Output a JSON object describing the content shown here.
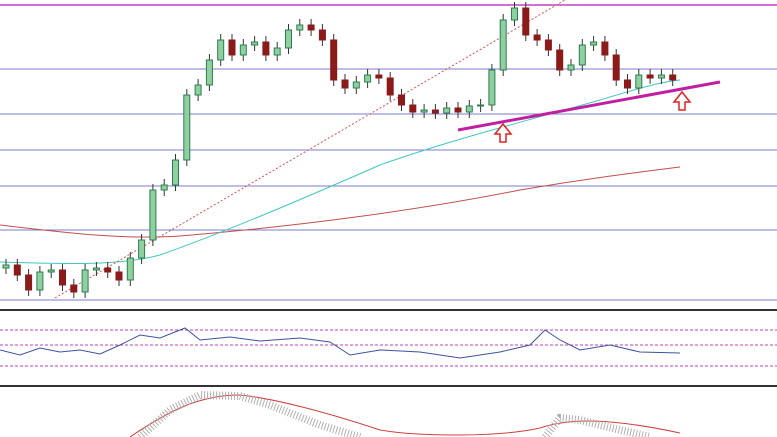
{
  "chart_data": {
    "type": "candlestick",
    "ylim": [
      0,
      308
    ],
    "up_color": "#2e7d4f",
    "down_color": "#8b1a1a",
    "open": [
      40,
      43,
      33,
      18,
      36,
      38,
      23,
      16,
      38,
      40,
      36,
      28,
      50,
      68,
      118,
      123,
      148,
      213,
      223,
      248,
      268,
      253,
      263,
      266,
      253,
      260,
      278,
      283,
      278,
      268,
      228,
      220,
      226,
      233,
      230,
      213,
      203,
      196,
      198,
      195,
      200,
      196,
      202,
      203,
      238,
      288,
      300,
      273,
      268,
      258,
      238,
      243,
      263,
      266,
      253,
      228,
      220,
      233,
      230,
      233
    ],
    "high": [
      49,
      49,
      39,
      42,
      44,
      44,
      29,
      44,
      46,
      46,
      42,
      56,
      74,
      124,
      129,
      154,
      219,
      229,
      254,
      274,
      274,
      269,
      272,
      272,
      266,
      284,
      289,
      289,
      284,
      274,
      234,
      232,
      239,
      239,
      236,
      219,
      209,
      204,
      204,
      206,
      206,
      208,
      209,
      244,
      294,
      306,
      306,
      279,
      274,
      264,
      249,
      269,
      272,
      272,
      259,
      234,
      239,
      239,
      239,
      239
    ],
    "low": [
      34,
      27,
      12,
      12,
      30,
      17,
      10,
      10,
      32,
      30,
      22,
      22,
      44,
      62,
      112,
      117,
      142,
      207,
      217,
      242,
      247,
      247,
      257,
      247,
      247,
      254,
      272,
      272,
      262,
      222,
      214,
      214,
      220,
      224,
      207,
      197,
      190,
      190,
      189,
      189,
      190,
      190,
      196,
      197,
      232,
      282,
      267,
      262,
      252,
      232,
      232,
      237,
      257,
      247,
      222,
      214,
      214,
      224,
      224,
      222
    ],
    "close": [
      43,
      33,
      18,
      36,
      38,
      23,
      16,
      38,
      40,
      36,
      28,
      50,
      68,
      118,
      123,
      148,
      213,
      223,
      248,
      268,
      253,
      263,
      266,
      253,
      260,
      278,
      283,
      278,
      268,
      228,
      220,
      226,
      233,
      230,
      213,
      203,
      196,
      198,
      195,
      200,
      196,
      202,
      203,
      238,
      288,
      300,
      273,
      268,
      258,
      238,
      243,
      263,
      266,
      253,
      228,
      220,
      233,
      230,
      233,
      228
    ]
  }
}
